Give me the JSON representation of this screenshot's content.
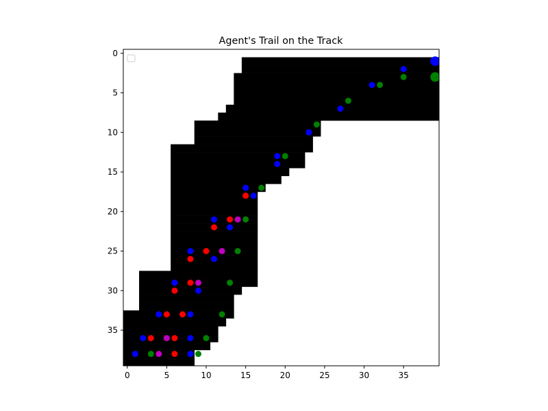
{
  "chart_data": {
    "type": "scatter",
    "title": "Agent's Trail on the Track",
    "xlabel": "",
    "ylabel": "",
    "xlim": [
      -0.5,
      39.5
    ],
    "ylim": [
      39.5,
      -0.5
    ],
    "y_inverted": true,
    "x_ticks": [
      0,
      5,
      10,
      15,
      20,
      25,
      30,
      35
    ],
    "y_ticks": [
      0,
      5,
      10,
      15,
      20,
      25,
      30,
      35
    ],
    "grid": false,
    "legend": {
      "placement": "upper-left",
      "entries": []
    },
    "colors": {
      "track": "#000000",
      "background": "#ffffff"
    },
    "track_rows": [
      {
        "row": 0,
        "x_start": 0,
        "x_end": 0
      },
      {
        "row": 1,
        "x_start": 15,
        "x_end": 39
      },
      {
        "row": 2,
        "x_start": 15,
        "x_end": 39
      },
      {
        "row": 3,
        "x_start": 14,
        "x_end": 39
      },
      {
        "row": 4,
        "x_start": 14,
        "x_end": 39
      },
      {
        "row": 5,
        "x_start": 14,
        "x_end": 39
      },
      {
        "row": 6,
        "x_start": 14,
        "x_end": 39
      },
      {
        "row": 7,
        "x_start": 13,
        "x_end": 39
      },
      {
        "row": 8,
        "x_start": 12,
        "x_end": 39
      },
      {
        "row": 9,
        "x_start": 9,
        "x_end": 24
      },
      {
        "row": 10,
        "x_start": 9,
        "x_end": 24
      },
      {
        "row": 11,
        "x_start": 9,
        "x_end": 23
      },
      {
        "row": 12,
        "x_start": 6,
        "x_end": 23
      },
      {
        "row": 13,
        "x_start": 6,
        "x_end": 22
      },
      {
        "row": 14,
        "x_start": 6,
        "x_end": 22
      },
      {
        "row": 15,
        "x_start": 6,
        "x_end": 20
      },
      {
        "row": 16,
        "x_start": 6,
        "x_end": 19
      },
      {
        "row": 17,
        "x_start": 6,
        "x_end": 17
      },
      {
        "row": 18,
        "x_start": 6,
        "x_end": 16
      },
      {
        "row": 19,
        "x_start": 6,
        "x_end": 16
      },
      {
        "row": 20,
        "x_start": 6,
        "x_end": 16
      },
      {
        "row": 21,
        "x_start": 6,
        "x_end": 16
      },
      {
        "row": 22,
        "x_start": 6,
        "x_end": 16
      },
      {
        "row": 23,
        "x_start": 6,
        "x_end": 16
      },
      {
        "row": 24,
        "x_start": 6,
        "x_end": 16
      },
      {
        "row": 25,
        "x_start": 6,
        "x_end": 16
      },
      {
        "row": 26,
        "x_start": 6,
        "x_end": 16
      },
      {
        "row": 27,
        "x_start": 6,
        "x_end": 16
      },
      {
        "row": 28,
        "x_start": 2,
        "x_end": 16
      },
      {
        "row": 29,
        "x_start": 2,
        "x_end": 16
      },
      {
        "row": 30,
        "x_start": 2,
        "x_end": 14
      },
      {
        "row": 31,
        "x_start": 2,
        "x_end": 13
      },
      {
        "row": 32,
        "x_start": 2,
        "x_end": 13
      },
      {
        "row": 33,
        "x_start": -1,
        "x_end": 13
      },
      {
        "row": 34,
        "x_start": -1,
        "x_end": 12
      },
      {
        "row": 35,
        "x_start": -1,
        "x_end": 11
      },
      {
        "row": 36,
        "x_start": -1,
        "x_end": 11
      },
      {
        "row": 37,
        "x_start": -1,
        "x_end": 10
      },
      {
        "row": 38,
        "x_start": -1,
        "x_end": 8
      },
      {
        "row": 39,
        "x_start": -1,
        "x_end": 8
      }
    ],
    "series": [
      {
        "color": "#0000ff",
        "points": [
          {
            "x": 39,
            "y": 1,
            "size": "large"
          },
          {
            "x": 35,
            "y": 2
          },
          {
            "x": 31,
            "y": 4
          },
          {
            "x": 27,
            "y": 7
          },
          {
            "x": 23,
            "y": 10
          },
          {
            "x": 19,
            "y": 13
          },
          {
            "x": 19,
            "y": 14
          },
          {
            "x": 15,
            "y": 17
          },
          {
            "x": 16,
            "y": 18
          },
          {
            "x": 11,
            "y": 21
          },
          {
            "x": 13,
            "y": 22
          },
          {
            "x": 8,
            "y": 25
          },
          {
            "x": 11,
            "y": 26
          },
          {
            "x": 6,
            "y": 29
          },
          {
            "x": 9,
            "y": 30
          },
          {
            "x": 4,
            "y": 33
          },
          {
            "x": 8,
            "y": 33
          },
          {
            "x": 2,
            "y": 36
          },
          {
            "x": 8,
            "y": 36
          },
          {
            "x": 1,
            "y": 38
          },
          {
            "x": 8,
            "y": 38
          }
        ]
      },
      {
        "color": "#008000",
        "points": [
          {
            "x": 39,
            "y": 3,
            "size": "large"
          },
          {
            "x": 35,
            "y": 3
          },
          {
            "x": 32,
            "y": 4
          },
          {
            "x": 28,
            "y": 6
          },
          {
            "x": 24,
            "y": 9
          },
          {
            "x": 20,
            "y": 13
          },
          {
            "x": 17,
            "y": 17
          },
          {
            "x": 15,
            "y": 21
          },
          {
            "x": 14,
            "y": 25
          },
          {
            "x": 13,
            "y": 29
          },
          {
            "x": 12,
            "y": 33
          },
          {
            "x": 10,
            "y": 36
          },
          {
            "x": 3,
            "y": 38
          },
          {
            "x": 9,
            "y": 38
          }
        ]
      },
      {
        "color": "#ff0000",
        "points": [
          {
            "x": 15,
            "y": 18
          },
          {
            "x": 13,
            "y": 21
          },
          {
            "x": 11,
            "y": 22
          },
          {
            "x": 10,
            "y": 25
          },
          {
            "x": 8,
            "y": 26
          },
          {
            "x": 8,
            "y": 29
          },
          {
            "x": 6,
            "y": 30
          },
          {
            "x": 5,
            "y": 33
          },
          {
            "x": 7,
            "y": 33
          },
          {
            "x": 3,
            "y": 36
          },
          {
            "x": 6,
            "y": 36
          },
          {
            "x": 6,
            "y": 38
          }
        ]
      },
      {
        "color": "#bf00bf",
        "points": [
          {
            "x": 14,
            "y": 21
          },
          {
            "x": 12,
            "y": 25
          },
          {
            "x": 9,
            "y": 29
          },
          {
            "x": 5,
            "y": 36
          },
          {
            "x": 4,
            "y": 38
          }
        ]
      }
    ]
  }
}
